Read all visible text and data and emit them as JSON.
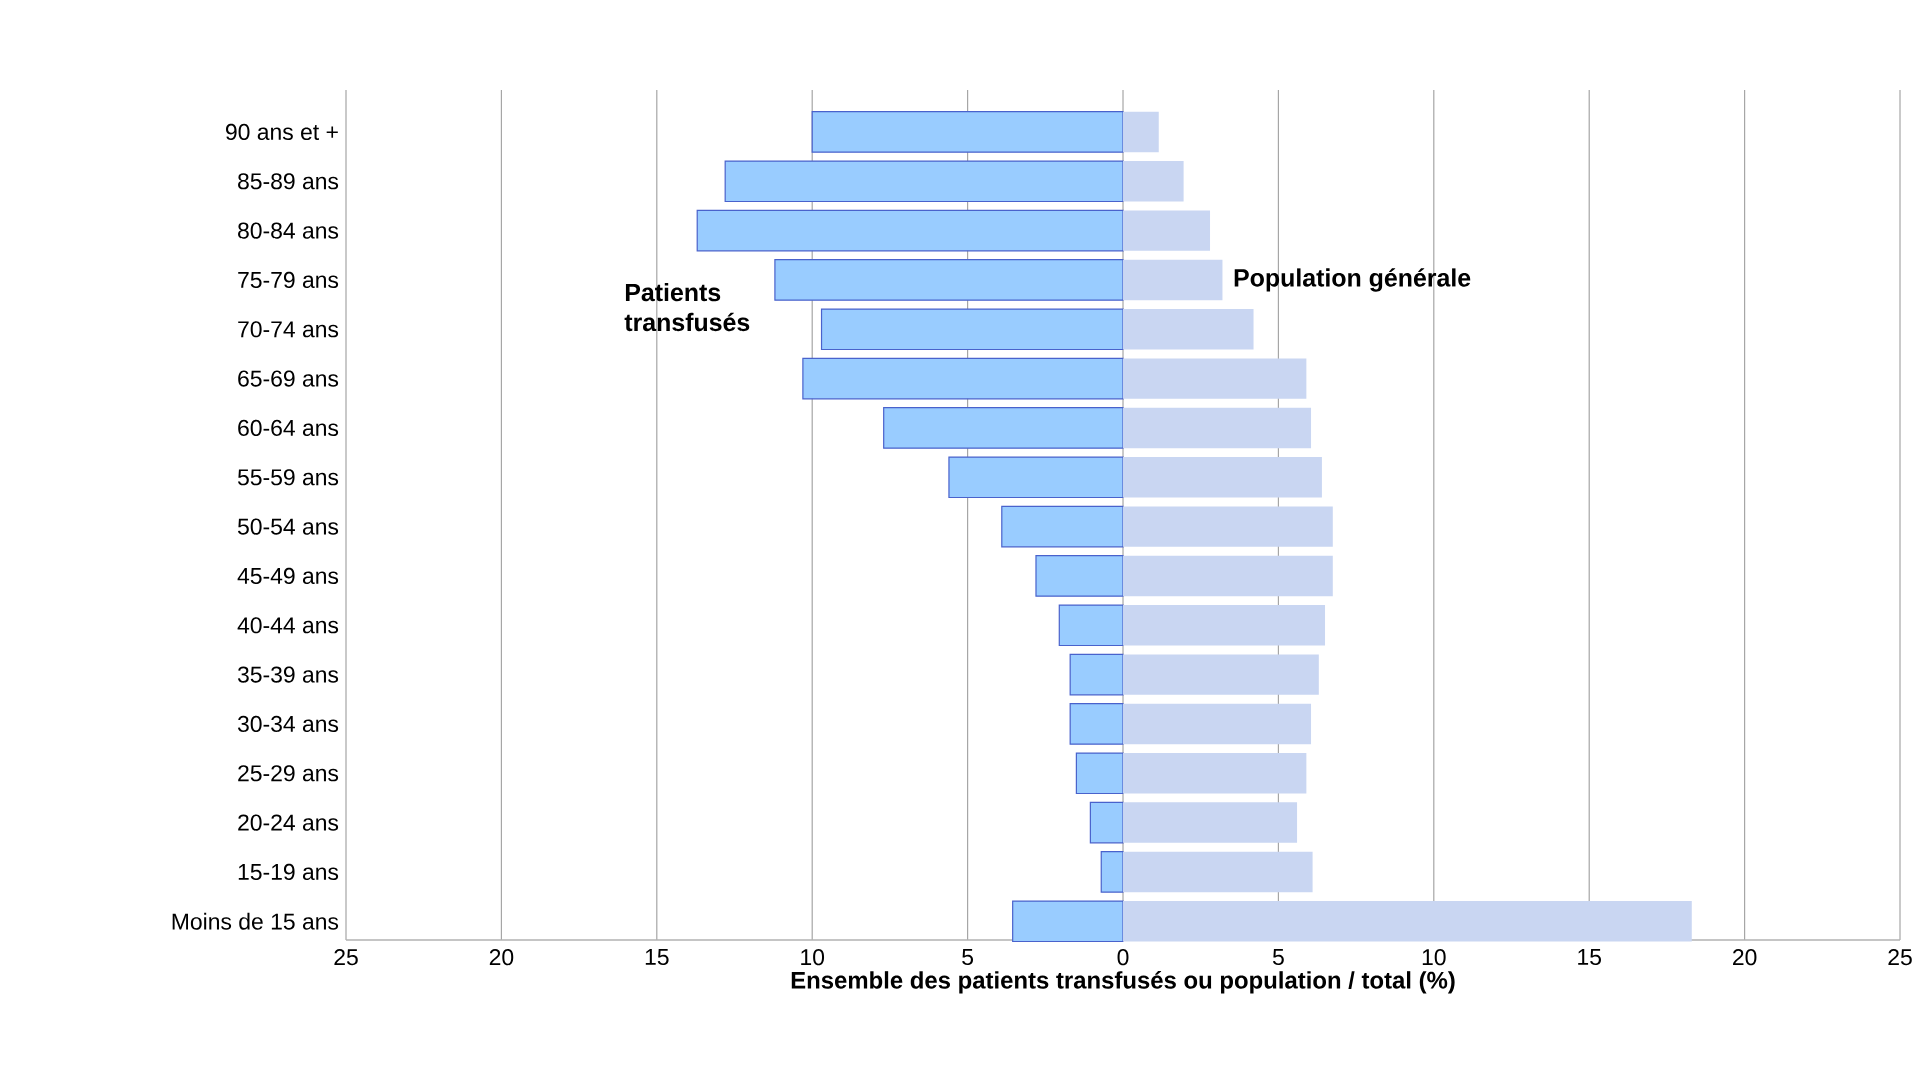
{
  "chart_data": {
    "type": "bar",
    "orientation": "horizontal",
    "xlabel": "Ensemble des patients transfusés ou population / total  (%)",
    "categories": [
      "90 ans et +",
      "85-89 ans",
      "80-84 ans",
      "75-79 ans",
      "70-74 ans",
      "65-69 ans",
      "60-64 ans",
      "55-59 ans",
      "50-54 ans",
      "45-49 ans",
      "40-44 ans",
      "35-39 ans",
      "30-34 ans",
      "25-29 ans",
      "20-24 ans",
      "15-19 ans",
      "Moins de 15 ans"
    ],
    "series": [
      {
        "name": "Patients transfusés",
        "color": "#99ccff",
        "values": [
          -10.0,
          -12.8,
          -13.7,
          -11.2,
          -9.7,
          -10.3,
          -7.7,
          -5.6,
          -3.9,
          -2.8,
          -2.05,
          -1.7,
          -1.7,
          -1.5,
          -1.05,
          -0.7,
          -3.55
        ]
      },
      {
        "name": "Population générale",
        "color": "#c9d6f2",
        "values": [
          1.15,
          1.95,
          2.8,
          3.2,
          4.2,
          5.9,
          6.05,
          6.4,
          6.75,
          6.75,
          6.5,
          6.3,
          6.05,
          5.9,
          5.6,
          6.1,
          18.3
        ]
      }
    ],
    "xlim": [
      -25,
      25
    ],
    "xticks": [
      {
        "value": -25,
        "label": "25"
      },
      {
        "value": -20,
        "label": "20"
      },
      {
        "value": -15,
        "label": "15"
      },
      {
        "value": -10,
        "label": "10"
      },
      {
        "value": -5,
        "label": "5"
      },
      0,
      5,
      10,
      15,
      20,
      25
    ],
    "grid": "x",
    "legend": false,
    "stacked": true
  }
}
